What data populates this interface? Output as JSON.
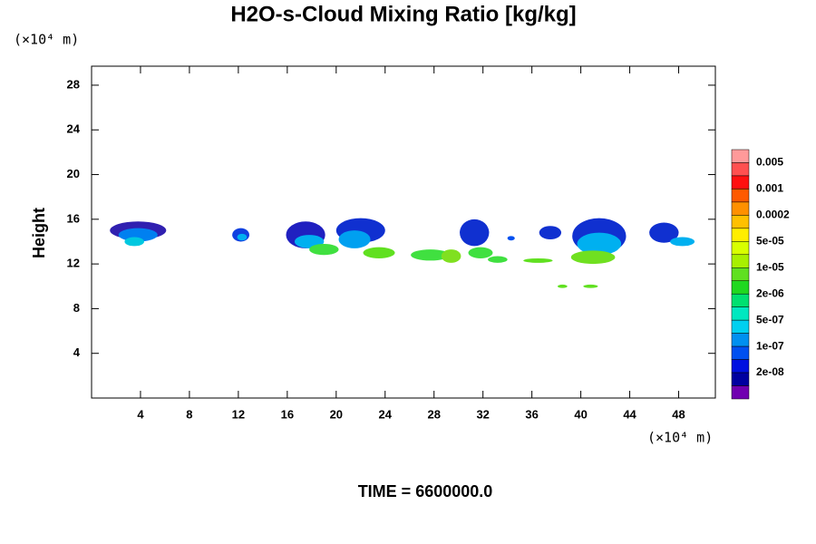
{
  "chart_data": {
    "type": "contour",
    "title": "H2O-s-Cloud Mixing Ratio [kg/kg]",
    "y_label": "Height",
    "x_unit": "(×10⁴ m)",
    "y_unit": "(×10⁴ m)",
    "time_label": "TIME = 6600000.0",
    "xlim": [
      0,
      51
    ],
    "ylim": [
      0,
      29.7
    ],
    "xticks": [
      4,
      8,
      12,
      16,
      20,
      24,
      28,
      32,
      36,
      40,
      44,
      48
    ],
    "yticks": [
      4,
      8,
      12,
      16,
      20,
      24,
      28
    ],
    "colorbar": {
      "colors": [
        "#ff9a9a",
        "#ff5050",
        "#ff1010",
        "#ff5a00",
        "#ff9000",
        "#ffc000",
        "#ffee00",
        "#d8ff00",
        "#a8f000",
        "#60e020",
        "#20d820",
        "#00e070",
        "#00e8c0",
        "#00d0f0",
        "#0090f0",
        "#0050f0",
        "#0010e0",
        "#0000a0",
        "#7000b0"
      ],
      "levels": [
        0.005,
        0.001,
        0.0002,
        {
          "value": 5e-05,
          "label": "5e-05"
        },
        {
          "value": 1e-05,
          "label": "1e-05"
        },
        {
          "value": 2e-06,
          "label": "2e-06"
        },
        {
          "value": 5e-07,
          "label": "5e-07"
        },
        {
          "value": 1e-07,
          "label": "1e-07"
        },
        {
          "value": 2e-08,
          "label": "2e-08"
        }
      ]
    },
    "patches": [
      {
        "x": 3.8,
        "y": 15.0,
        "rx": 2.3,
        "ry": 0.8,
        "color": "#3020b0"
      },
      {
        "x": 3.8,
        "y": 14.6,
        "rx": 1.6,
        "ry": 0.6,
        "color": "#0080f0"
      },
      {
        "x": 3.5,
        "y": 14.0,
        "rx": 0.8,
        "ry": 0.4,
        "color": "#00c8e0"
      },
      {
        "x": 12.2,
        "y": 14.6,
        "rx": 0.7,
        "ry": 0.6,
        "color": "#1040e0"
      },
      {
        "x": 12.3,
        "y": 14.4,
        "rx": 0.4,
        "ry": 0.3,
        "color": "#00b0f0"
      },
      {
        "x": 17.5,
        "y": 14.6,
        "rx": 1.6,
        "ry": 1.2,
        "color": "#2020c0"
      },
      {
        "x": 17.8,
        "y": 14.0,
        "rx": 1.2,
        "ry": 0.6,
        "color": "#00b0f0"
      },
      {
        "x": 19.0,
        "y": 13.3,
        "rx": 1.2,
        "ry": 0.5,
        "color": "#40e040"
      },
      {
        "x": 22.0,
        "y": 15.0,
        "rx": 2.0,
        "ry": 1.1,
        "color": "#1030d0"
      },
      {
        "x": 21.5,
        "y": 14.2,
        "rx": 1.3,
        "ry": 0.8,
        "color": "#00a0f0"
      },
      {
        "x": 23.5,
        "y": 13.0,
        "rx": 1.3,
        "ry": 0.5,
        "color": "#60e020"
      },
      {
        "x": 27.7,
        "y": 12.8,
        "rx": 1.6,
        "ry": 0.5,
        "color": "#40e040"
      },
      {
        "x": 29.4,
        "y": 12.7,
        "rx": 0.8,
        "ry": 0.6,
        "color": "#80e020"
      },
      {
        "x": 31.3,
        "y": 14.8,
        "rx": 1.2,
        "ry": 1.2,
        "color": "#1030d0"
      },
      {
        "x": 31.8,
        "y": 13.0,
        "rx": 1.0,
        "ry": 0.5,
        "color": "#40e040"
      },
      {
        "x": 33.2,
        "y": 12.4,
        "rx": 0.8,
        "ry": 0.3,
        "color": "#40e040"
      },
      {
        "x": 34.3,
        "y": 14.3,
        "rx": 0.3,
        "ry": 0.2,
        "color": "#0050f0"
      },
      {
        "x": 37.5,
        "y": 14.8,
        "rx": 0.9,
        "ry": 0.6,
        "color": "#1030d0"
      },
      {
        "x": 36.5,
        "y": 12.3,
        "rx": 1.2,
        "ry": 0.2,
        "color": "#60e020"
      },
      {
        "x": 41.5,
        "y": 14.5,
        "rx": 2.2,
        "ry": 1.6,
        "color": "#1030d0"
      },
      {
        "x": 41.5,
        "y": 13.8,
        "rx": 1.8,
        "ry": 1.0,
        "color": "#00b0f0"
      },
      {
        "x": 41.0,
        "y": 12.6,
        "rx": 1.8,
        "ry": 0.6,
        "color": "#70e020"
      },
      {
        "x": 46.8,
        "y": 14.8,
        "rx": 1.2,
        "ry": 0.9,
        "color": "#1030d0"
      },
      {
        "x": 48.3,
        "y": 14.0,
        "rx": 1.0,
        "ry": 0.4,
        "color": "#00b0f0"
      },
      {
        "x": 38.5,
        "y": 10.0,
        "rx": 0.4,
        "ry": 0.15,
        "color": "#60e020"
      },
      {
        "x": 40.8,
        "y": 10.0,
        "rx": 0.6,
        "ry": 0.15,
        "color": "#60e020"
      }
    ]
  }
}
